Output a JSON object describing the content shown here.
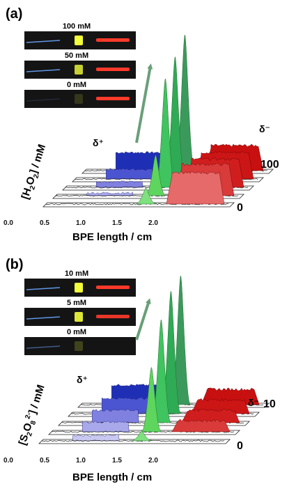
{
  "panels": [
    {
      "id": "a",
      "label": "(a)",
      "images": [
        {
          "label": "100 mM",
          "blue": 0.9,
          "yellow": 1.0,
          "red": 1.0
        },
        {
          "label": "50 mM",
          "blue": 0.9,
          "yellow": 0.8,
          "red": 1.0
        },
        {
          "label": "0 mM",
          "blue": 0.15,
          "yellow": 0.15,
          "red": 1.0
        }
      ],
      "ylabel_main": "[H",
      "ylabel_sub1": "2",
      "ylabel_mid": "O",
      "ylabel_sub2": "2",
      "ylabel_end": "] / mM",
      "delta_plus": "δ⁺",
      "delta_minus": "δ⁻",
      "z_top": "100",
      "z_bottom": "0",
      "xlabel": "BPE length / cm",
      "ticks": [
        "0.0",
        "0.5",
        "1.0",
        "1.5",
        "2.0"
      ],
      "chart_data": {
        "type": "area",
        "x": [
          0.0,
          0.5,
          1.0,
          1.5,
          2.0
        ],
        "series": [
          {
            "z": "0",
            "cathodic": 0.0,
            "green": 0.12,
            "anodic": 1.0
          },
          {
            "z": "25",
            "cathodic": 0.1,
            "green": 0.3,
            "anodic": 1.0
          },
          {
            "z": "50",
            "cathodic": 0.2,
            "green": 0.8,
            "anodic": 0.9
          },
          {
            "z": "75",
            "cathodic": 0.35,
            "green": 0.9,
            "anodic": 0.85
          },
          {
            "z": "100",
            "cathodic": 0.65,
            "green": 1.0,
            "anodic": 0.8
          }
        ]
      }
    },
    {
      "id": "b",
      "label": "(b)",
      "images": [
        {
          "label": "10 mM",
          "blue": 0.9,
          "yellow": 1.0,
          "red": 1.0
        },
        {
          "label": "5 mM",
          "blue": 0.9,
          "yellow": 0.9,
          "red": 0.9
        },
        {
          "label": "0 mM",
          "blue": 0.5,
          "yellow": 0.2,
          "red": 0.0
        }
      ],
      "ylabel_main": "[S",
      "ylabel_sub1": "2",
      "ylabel_mid": "O",
      "ylabel_sub2": "8",
      "ylabel_sup": "2-",
      "ylabel_end": "] / mM",
      "delta_plus": "δ⁺",
      "delta_minus": "δ⁻",
      "z_top": "10",
      "z_bottom": "0",
      "xlabel": "BPE length / cm",
      "ticks": [
        "0.0",
        "0.5",
        "1.0",
        "1.5",
        "2.0"
      ],
      "chart_data": {
        "type": "area",
        "x": [
          0.0,
          0.5,
          1.0,
          1.5,
          2.0
        ],
        "series": [
          {
            "z": "0",
            "cathodic": 0.2,
            "green": 0.08,
            "anodic": 0.0
          },
          {
            "z": "2.5",
            "cathodic": 0.35,
            "green": 0.5,
            "anodic": 0.4
          },
          {
            "z": "5",
            "cathodic": 0.45,
            "green": 0.8,
            "anodic": 0.45
          },
          {
            "z": "7.5",
            "cathodic": 0.55,
            "green": 0.95,
            "anodic": 0.5
          },
          {
            "z": "10",
            "cathodic": 0.7,
            "green": 1.0,
            "anodic": 0.55
          }
        ]
      }
    }
  ]
}
